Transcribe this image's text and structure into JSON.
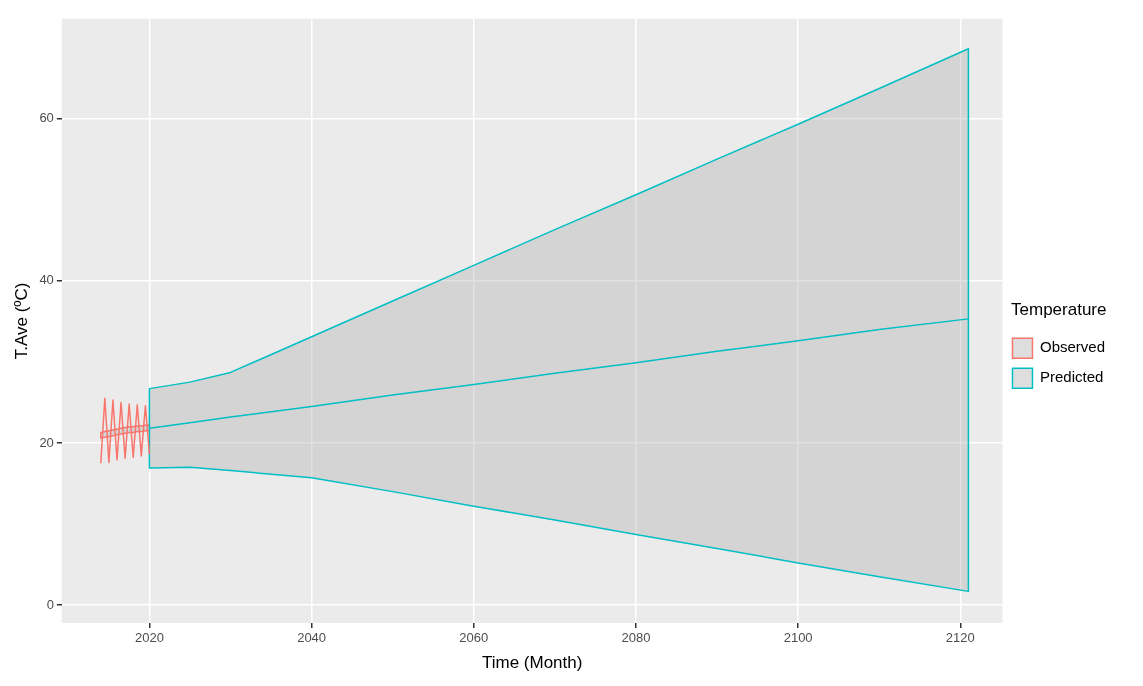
{
  "chart_data": {
    "type": "line",
    "xlabel": "Time (Month)",
    "ylabel": "T.Ave (ºC)",
    "legend_title": "Temperature",
    "legend": "right",
    "grid": true,
    "xlim": [
      2009.2,
      2125.2
    ],
    "xticks": [
      2020,
      2040,
      2060,
      2080,
      2100,
      2120
    ],
    "ylim": [
      -2.2,
      72.3
    ],
    "yticks": [
      0,
      20,
      40,
      60
    ],
    "series": [
      {
        "name": "Observed",
        "color": "#f8766d",
        "x": [
          2014.0,
          2014.5,
          2015.0,
          2015.5,
          2016.0,
          2016.5,
          2017.0,
          2017.5,
          2018.0,
          2018.5,
          2019.0,
          2019.5,
          2020.0
        ],
        "values": [
          17.5,
          25.5,
          17.6,
          25.3,
          17.9,
          25.0,
          18.1,
          24.8,
          18.2,
          24.7,
          18.4,
          24.6,
          18.6
        ],
        "lower": [
          20.6,
          20.7,
          20.8,
          20.9,
          21.0,
          21.1,
          21.2,
          21.3,
          21.3,
          21.4,
          21.4,
          21.5,
          21.5
        ],
        "upper": [
          21.3,
          21.4,
          21.5,
          21.6,
          21.7,
          21.8,
          21.9,
          22.0,
          22.0,
          22.1,
          22.1,
          22.2,
          22.2
        ]
      },
      {
        "name": "Predicted",
        "color": "#00bfc4",
        "x": [
          2020,
          2025,
          2030,
          2040,
          2050,
          2060,
          2070,
          2080,
          2090,
          2100,
          2110,
          2121
        ],
        "values": [
          21.8,
          22.5,
          23.2,
          24.5,
          25.9,
          27.2,
          28.6,
          29.9,
          31.3,
          32.6,
          34.0,
          35.3
        ],
        "lower": [
          16.9,
          17.0,
          16.6,
          15.7,
          14.0,
          12.2,
          10.5,
          8.7,
          7.0,
          5.2,
          3.5,
          1.7
        ],
        "upper": [
          26.7,
          27.5,
          28.7,
          33.1,
          37.5,
          41.9,
          46.3,
          50.6,
          55.0,
          59.3,
          63.7,
          68.6
        ]
      }
    ]
  }
}
